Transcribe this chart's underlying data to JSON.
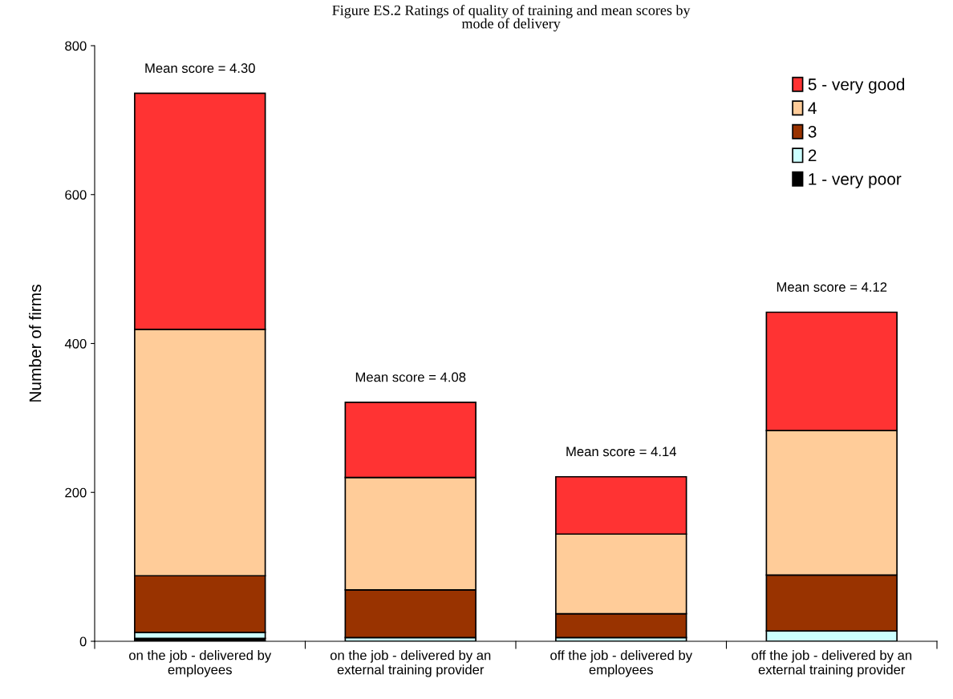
{
  "chart_data": {
    "type": "bar",
    "stacked": true,
    "title": "Figure ES.2 Ratings of quality of training and mean scores by\nmode of delivery",
    "ylabel": "Number of firms",
    "categories": [
      "on the job - delivered by\nemployees",
      "on the job - delivered by an\nexternal training provider",
      "off the job - delivered by\nemployees",
      "off the job - delivered by an\nexternal training provider"
    ],
    "series": [
      {
        "name": "1 - very poor",
        "color": "#000000",
        "values": [
          4,
          null,
          null,
          null
        ]
      },
      {
        "name": "2",
        "color": "#ccffff",
        "values": [
          8,
          5,
          5,
          14
        ]
      },
      {
        "name": "3",
        "color": "#993300",
        "values": [
          76,
          64,
          32,
          75
        ]
      },
      {
        "name": "4",
        "color": "#ffcc99",
        "values": [
          331,
          151,
          107,
          194
        ]
      },
      {
        "name": "5 - very good",
        "color": "#ff3333",
        "values": [
          317,
          101,
          77,
          159
        ]
      }
    ],
    "ylim": [
      0,
      800
    ],
    "yticks": [
      0,
      200,
      400,
      600,
      800
    ],
    "grid": false,
    "legend": "top right",
    "annotations": [
      "Mean score = 4.30",
      "Mean score = 4.08",
      "Mean score = 4.14",
      "Mean score = 4.12"
    ]
  }
}
